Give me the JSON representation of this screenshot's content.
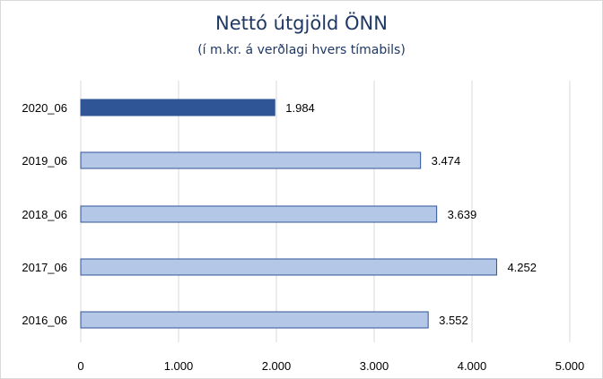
{
  "chart_data": {
    "type": "bar",
    "orientation": "horizontal",
    "title": "Nettó útgjöld ÖNN",
    "subtitle": "(í m.kr. á verðlagi hvers tímabils)",
    "categories": [
      "2020_06",
      "2019_06",
      "2018_06",
      "2017_06",
      "2016_06"
    ],
    "values": [
      1984,
      3474,
      3639,
      4252,
      3552
    ],
    "value_labels": [
      "1.984",
      "3.474",
      "3.639",
      "4.252",
      "3.552"
    ],
    "xlim": [
      0,
      5000
    ],
    "xticks": [
      0,
      1000,
      2000,
      3000,
      4000,
      5000
    ],
    "xtick_labels": [
      "0",
      "1.000",
      "2.000",
      "3.000",
      "4.000",
      "5.000"
    ],
    "grid": true,
    "legend": "none",
    "colors": {
      "highlight_fill": "#2f5597",
      "highlight_stroke": "#2f5597",
      "default_fill": "#b4c7e7",
      "default_stroke": "#2f5597",
      "grid": "#d9d9d9",
      "title": "#1f3864"
    },
    "highlight_index": 0
  }
}
